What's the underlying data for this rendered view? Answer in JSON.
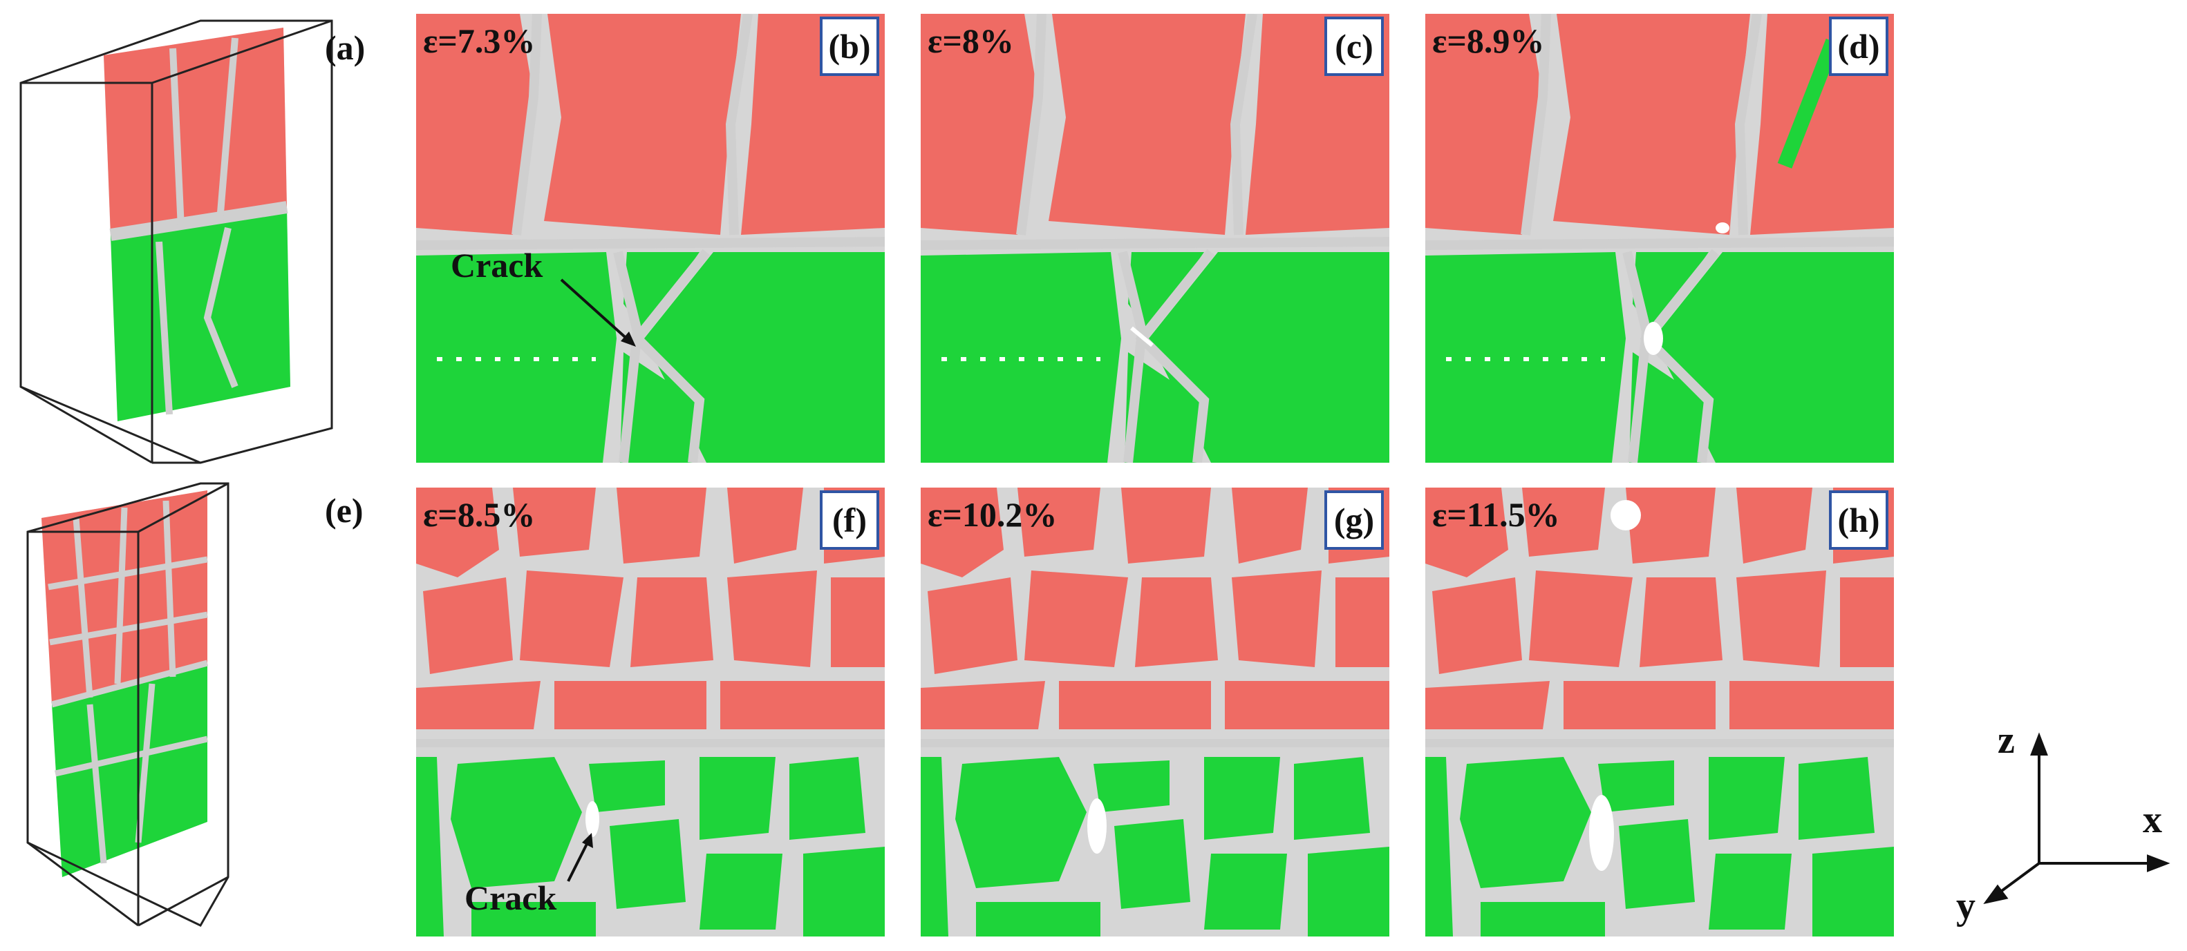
{
  "colors": {
    "fcc": "#ef6b64",
    "hcp": "#1ed43a",
    "grain_boundary": "#cfcfcf",
    "crack": "#ffffff",
    "tag_border": "#2f55a4"
  },
  "overview": {
    "top_tag": "(a)",
    "bottom_tag": "(e)"
  },
  "panels": [
    {
      "tag": "(b)",
      "strain": "ε=7.3%",
      "annotation": "Crack"
    },
    {
      "tag": "(c)",
      "strain": "ε=8%"
    },
    {
      "tag": "(d)",
      "strain": "ε=8.9%"
    },
    {
      "tag": "(f)",
      "strain": "ε=8.5%",
      "annotation": "Crack"
    },
    {
      "tag": "(g)",
      "strain": "ε=10.2%"
    },
    {
      "tag": "(h)",
      "strain": "ε=11.5%"
    }
  ],
  "axes": {
    "z": "z",
    "x": "x",
    "y": "y"
  },
  "icons": [
    "arrow-icon"
  ]
}
